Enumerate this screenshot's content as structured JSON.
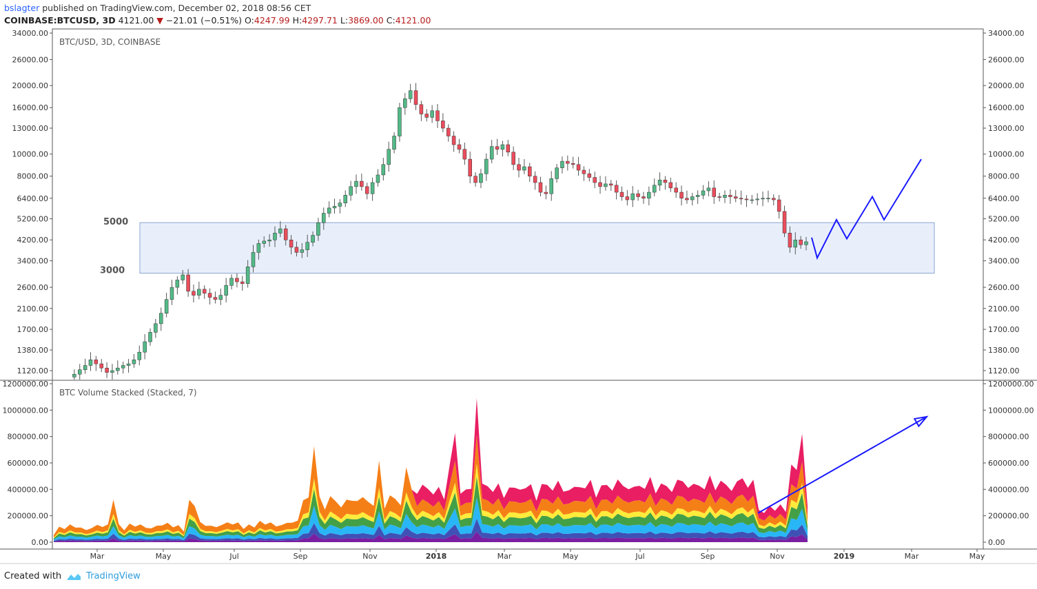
{
  "header": {
    "user": "bslagter",
    "published": "published on TradingView.com, December 02, 2018 08:56 CET",
    "symbol": "COINBASE:BTCUSD, 3D",
    "last": "4121.00",
    "change": "−21.01 (−0.51%)",
    "o_label": "O:",
    "o": "4247.99",
    "h_label": "H:",
    "h": "4297.71",
    "l_label": "L:",
    "l": "3869.00",
    "c_label": "C:",
    "c": "4121.00"
  },
  "footer": {
    "created": "Created with",
    "brand": "TradingView"
  },
  "colors": {
    "up": "#53b987",
    "down": "#eb4d5c",
    "zone_fill": "#e8effb",
    "zone_stroke": "#8aa4cf",
    "projection": "#1a1aff",
    "vol_layers": [
      "#7b1fa2",
      "#3f51b5",
      "#29b6f6",
      "#43a047",
      "#ffeb3b",
      "#f57f17",
      "#e91e63"
    ]
  },
  "chart_data": [
    {
      "type": "candlestick",
      "title": "BTC/USD, 3D, COINBASE",
      "yscale": "log",
      "ylim": [
        1000,
        35000
      ],
      "y_ticks": [
        "34000.00",
        "26000.00",
        "20000.00",
        "16000.00",
        "13000.00",
        "10000.00",
        "8000.00",
        "6400.00",
        "5200.00",
        "4200.00",
        "3400.00",
        "2600.00",
        "2100.00",
        "1700.00",
        "1380.00",
        "1120.00"
      ],
      "x_ticks": [
        "Mar",
        "May",
        "Jul",
        "Sep",
        "Nov",
        "2018",
        "Mar",
        "May",
        "Jul",
        "Sep",
        "Nov",
        "2019",
        "Mar",
        "May"
      ],
      "zone": {
        "upper": 5000,
        "lower": 3000,
        "upper_label": "5000",
        "lower_label": "3000"
      },
      "path_points": [
        1050,
        1080,
        1130,
        1180,
        1250,
        1200,
        1150,
        1100,
        1120,
        1150,
        1180,
        1200,
        1250,
        1350,
        1500,
        1650,
        1800,
        2000,
        2300,
        2600,
        2800,
        2950,
        2500,
        2400,
        2550,
        2450,
        2350,
        2300,
        2400,
        2650,
        2850,
        2750,
        2700,
        3200,
        3700,
        4050,
        4150,
        4200,
        4500,
        4700,
        4200,
        3900,
        3700,
        3800,
        4100,
        4400,
        5000,
        5500,
        5800,
        5900,
        6100,
        6600,
        7200,
        7600,
        7200,
        6700,
        7500,
        8100,
        9000,
        10500,
        12000,
        16000,
        17500,
        19000,
        16500,
        15000,
        14500,
        15500,
        14000,
        13000,
        12000,
        11000,
        10500,
        9500,
        8000,
        7500,
        8200,
        9500,
        10800,
        10500,
        11000,
        10200,
        9000,
        8500,
        8800,
        8000,
        7500,
        6800,
        6700,
        7800,
        8700,
        9300,
        9100,
        9000,
        8500,
        8200,
        7900,
        7500,
        7200,
        7400,
        7300,
        6800,
        6500,
        6300,
        6700,
        6500,
        6400,
        6800,
        7300,
        7700,
        7500,
        7100,
        6800,
        6400,
        6300,
        6500,
        6600,
        6900,
        7100,
        6500,
        6450,
        6600,
        6500,
        6400,
        6350,
        6300,
        6300,
        6350,
        6400,
        6400,
        6300,
        5600,
        4500,
        3900,
        4200,
        4000,
        4121
      ],
      "projection_points": [
        [
          1178,
          4300
        ],
        [
          1186,
          3500
        ],
        [
          1214,
          5150
        ],
        [
          1229,
          4250
        ],
        [
          1266,
          6500
        ],
        [
          1283,
          5150
        ],
        [
          1337,
          9500
        ]
      ]
    },
    {
      "type": "area",
      "title": "BTC Volume Stacked (Stacked, 7)",
      "stacked": true,
      "ylim": [
        0,
        1200000
      ],
      "y_ticks": [
        "1200000.00",
        "1000000.00",
        "800000.00",
        "600000.00",
        "400000.00",
        "200000.00",
        "0.00"
      ],
      "peaks": [
        {
          "x": 165,
          "total": 370000
        },
        {
          "x": 278,
          "total": 480000
        },
        {
          "x": 455,
          "total": 860000
        },
        {
          "x": 550,
          "total": 700000
        },
        {
          "x": 592,
          "total": 780000
        },
        {
          "x": 658,
          "total": 930000
        },
        {
          "x": 692,
          "total": 1000000
        },
        {
          "x": 1152,
          "total": 750000
        },
        {
          "x": 1163,
          "total": 820000
        }
      ],
      "projection": [
        [
          1100,
          220000
        ],
        [
          1345,
          950000
        ]
      ]
    }
  ]
}
